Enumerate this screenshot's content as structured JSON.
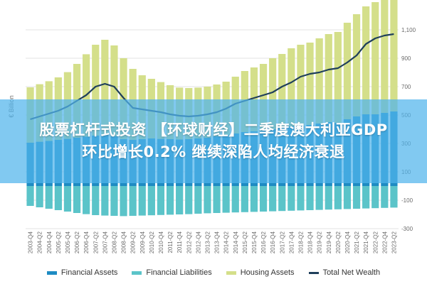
{
  "banner": {
    "line1": "股票杠杆式投资 【环球财经】二季度澳大利亚GDP",
    "line2": "环比增长0.2% 继续深陷人均经济衰退"
  },
  "colors": {
    "financial_assets": "#1e8bc3",
    "financial_liabilities": "#5bc4c9",
    "housing_assets": "#d4df8a",
    "total_net_wealth": "#1f3f5b"
  },
  "legend": [
    {
      "label": "Financial Assets",
      "color": "#1e8bc3"
    },
    {
      "label": "Financial Liabilities",
      "color": "#5bc4c9"
    },
    {
      "label": "Housing Assets",
      "color": "#d4df8a"
    },
    {
      "label": "Total Net Wealth",
      "color": "#1f3f5b"
    }
  ],
  "chart_data": {
    "type": "bar",
    "title": "",
    "ylabel": "€ Billion",
    "ylim": [
      -300,
      1200
    ],
    "yticks": [
      -300,
      -100,
      100,
      300,
      500,
      700,
      900,
      1100
    ],
    "yticklabels": [
      "-300",
      "-100",
      "100",
      "300",
      "500",
      "700",
      "900",
      "1,100"
    ],
    "grid": true,
    "legend_position": "bottom",
    "categories": [
      "2003-Q4",
      "2004-Q2",
      "2004-Q4",
      "2005-Q2",
      "2005-Q4",
      "2006-Q2",
      "2006-Q4",
      "2007-Q2",
      "2007-Q4",
      "2008-Q2",
      "2008-Q4",
      "2009-Q2",
      "2009-Q4",
      "2010-Q2",
      "2010-Q4",
      "2011-Q2",
      "2011-Q4",
      "2012-Q2",
      "2012-Q4",
      "2013-Q2",
      "2013-Q4",
      "2014-Q2",
      "2014-Q4",
      "2015-Q2",
      "2015-Q4",
      "2016-Q2",
      "2016-Q4",
      "2017-Q2",
      "2017-Q4",
      "2018-Q2",
      "2018-Q4",
      "2019-Q2",
      "2019-Q4",
      "2020-Q2",
      "2020-Q4",
      "2021-Q2",
      "2021-Q4",
      "2022-Q2",
      "2022-Q4",
      "2023-Q2"
    ],
    "series": [
      {
        "name": "Financial Assets",
        "kind": "bar",
        "values": [
          305,
          312,
          318,
          325,
          332,
          340,
          348,
          355,
          360,
          350,
          330,
          325,
          330,
          335,
          332,
          330,
          328,
          330,
          335,
          340,
          350,
          360,
          370,
          380,
          385,
          390,
          400,
          410,
          420,
          425,
          430,
          440,
          450,
          445,
          470,
          490,
          505,
          505,
          515,
          525
        ]
      },
      {
        "name": "Financial Liabilities",
        "kind": "bar",
        "values": [
          -140,
          -150,
          -160,
          -170,
          -180,
          -190,
          -198,
          -205,
          -208,
          -210,
          -212,
          -210,
          -208,
          -206,
          -204,
          -202,
          -200,
          -198,
          -195,
          -192,
          -190,
          -188,
          -186,
          -184,
          -182,
          -180,
          -178,
          -176,
          -174,
          -172,
          -170,
          -168,
          -166,
          -164,
          -162,
          -160,
          -158,
          -156,
          -154,
          -152
        ]
      },
      {
        "name": "Housing Assets",
        "kind": "bar",
        "values": [
          390,
          405,
          420,
          440,
          470,
          520,
          580,
          640,
          670,
          640,
          570,
          500,
          450,
          420,
          400,
          380,
          365,
          360,
          358,
          360,
          365,
          375,
          400,
          430,
          450,
          470,
          500,
          520,
          550,
          570,
          580,
          600,
          620,
          640,
          680,
          720,
          760,
          790,
          800,
          800
        ]
      },
      {
        "name": "Total Net Wealth",
        "kind": "line",
        "values": [
          470,
          490,
          510,
          530,
          560,
          600,
          640,
          700,
          720,
          700,
          620,
          550,
          540,
          530,
          520,
          505,
          495,
          490,
          495,
          505,
          520,
          545,
          580,
          600,
          620,
          640,
          660,
          700,
          730,
          770,
          790,
          800,
          820,
          830,
          870,
          920,
          1000,
          1040,
          1060,
          1070
        ]
      }
    ]
  }
}
